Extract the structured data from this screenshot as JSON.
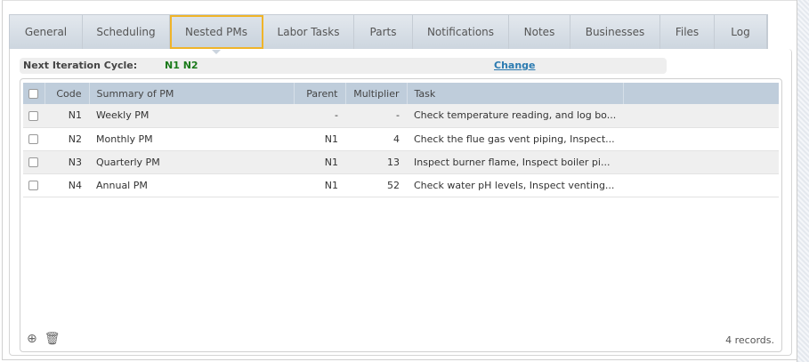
{
  "tabs": [
    {
      "label": "General",
      "active": false
    },
    {
      "label": "Scheduling",
      "active": false
    },
    {
      "label": "Nested PMs",
      "active": true
    },
    {
      "label": "Labor Tasks",
      "active": false
    },
    {
      "label": "Parts",
      "active": false
    },
    {
      "label": "Notifications",
      "active": false
    },
    {
      "label": "Notes",
      "active": false
    },
    {
      "label": "Businesses",
      "active": false
    },
    {
      "label": "Files",
      "active": false
    },
    {
      "label": "Log",
      "active": false
    }
  ],
  "iteration": {
    "label": "Next Iteration Cycle:",
    "value": "N1 N2",
    "change_label": "Change"
  },
  "table": {
    "columns": [
      "Code",
      "Summary of PM",
      "Parent",
      "Multiplier",
      "Task"
    ],
    "rows": [
      {
        "code": "N1",
        "summary": "Weekly PM",
        "parent": "-",
        "multiplier": "-",
        "task": "Check temperature reading, and log bo..."
      },
      {
        "code": "N2",
        "summary": "Monthly PM",
        "parent": "N1",
        "multiplier": "4",
        "task": "Check the flue gas vent piping, Inspect..."
      },
      {
        "code": "N3",
        "summary": "Quarterly PM",
        "parent": "N1",
        "multiplier": "13",
        "task": "Inspect burner flame, Inspect boiler pi..."
      },
      {
        "code": "N4",
        "summary": "Annual PM",
        "parent": "N1",
        "multiplier": "52",
        "task": "Check water pH levels, Inspect venting..."
      }
    ]
  },
  "footer": {
    "records": "4 records.",
    "icons": [
      "add-icon",
      "trash-icon"
    ]
  },
  "colors": {
    "active_tab_outline": "#f0b429",
    "iteration_value": "#1a7a1a",
    "link": "#2a7ab0",
    "header_bg": "#bfcddb"
  }
}
